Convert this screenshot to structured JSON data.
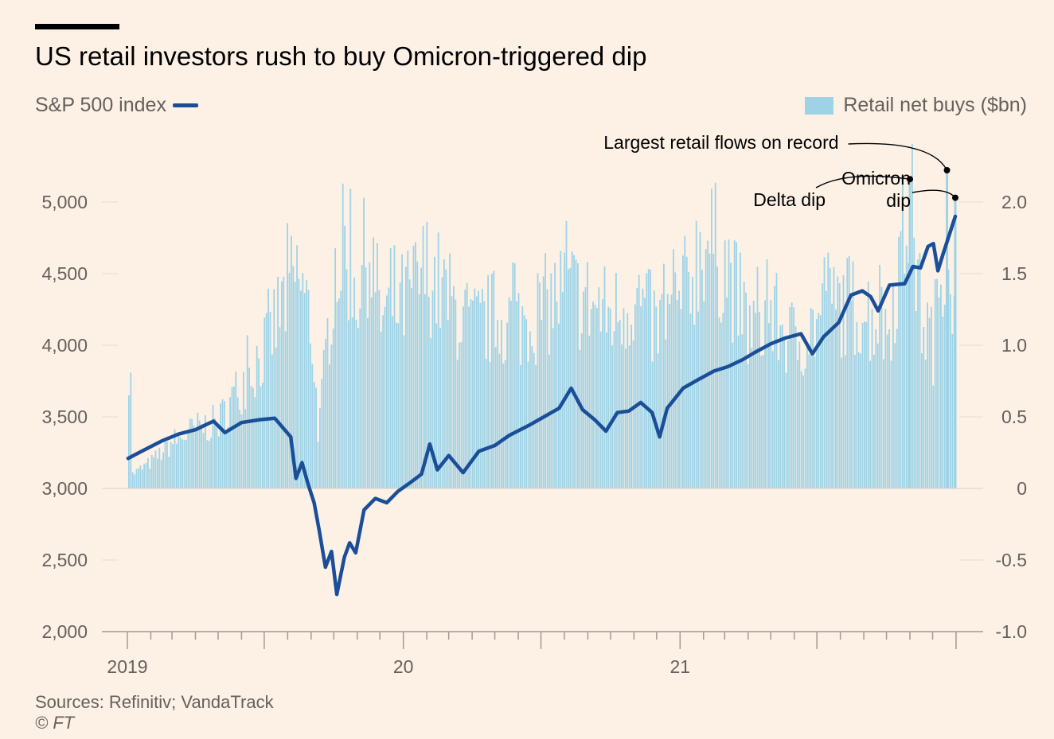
{
  "title": "US retail investors rush to buy Omicron-triggered dip",
  "legend": {
    "left_label": "S&P 500 index",
    "right_label": "Retail net buys ($bn)"
  },
  "source": "Sources: Refinitiv; VandaTrack",
  "copyright": "© FT",
  "colors": {
    "background": "#fdf1e6",
    "line": "#1a4e99",
    "bars": "#9ed3e6",
    "axis": "#a09a95"
  },
  "chart_data": {
    "type": "bar",
    "x_ticks": [
      {
        "label": "2019",
        "date": "2019-01-01"
      },
      {
        "label": "20",
        "date": "2020-01-01"
      },
      {
        "label": "21",
        "date": "2021-01-01"
      }
    ],
    "x_range": [
      "2019-01-01",
      "2021-12-31"
    ],
    "y_left": {
      "label": "S&P 500 index",
      "range": [
        2000,
        5000
      ],
      "ticks": [
        {
          "label": "5,000",
          "value": 5000
        },
        {
          "label": "4,500",
          "value": 4500
        },
        {
          "label": "4,000",
          "value": 4000
        },
        {
          "label": "3,500",
          "value": 3500
        },
        {
          "label": "3,000",
          "value": 3000
        },
        {
          "label": "2,500",
          "value": 2500
        },
        {
          "label": "2,000",
          "value": 2000
        }
      ]
    },
    "y_right": {
      "label": "Retail net buys ($bn)",
      "range": [
        -1.0,
        2.0
      ],
      "ticks": [
        {
          "label": "2.0",
          "value": 2.0
        },
        {
          "label": "1.5",
          "value": 1.5
        },
        {
          "label": "1.0",
          "value": 1.0
        },
        {
          "label": "0.5",
          "value": 0.5
        },
        {
          "label": "0",
          "value": 0
        },
        {
          "label": "-0.5",
          "value": -0.5
        },
        {
          "label": "-1.0",
          "value": -1.0
        }
      ]
    },
    "series": [
      {
        "name": "S&P 500 index",
        "type": "line",
        "axis": "left",
        "points": [
          [
            "2019-01-02",
            3210
          ],
          [
            "2019-01-20",
            3260
          ],
          [
            "2019-02-15",
            3330
          ],
          [
            "2019-03-10",
            3380
          ],
          [
            "2019-04-01",
            3410
          ],
          [
            "2019-04-25",
            3470
          ],
          [
            "2019-05-10",
            3390
          ],
          [
            "2019-06-01",
            3460
          ],
          [
            "2019-06-25",
            3480
          ],
          [
            "2019-07-15",
            3490
          ],
          [
            "2019-08-05",
            3360
          ],
          [
            "2019-08-12",
            3070
          ],
          [
            "2019-08-20",
            3180
          ],
          [
            "2019-08-28",
            3030
          ],
          [
            "2019-09-05",
            2900
          ],
          [
            "2019-09-12",
            2700
          ],
          [
            "2019-09-20",
            2450
          ],
          [
            "2019-09-28",
            2560
          ],
          [
            "2019-10-05",
            2260
          ],
          [
            "2019-10-15",
            2520
          ],
          [
            "2019-10-22",
            2620
          ],
          [
            "2019-10-30",
            2550
          ],
          [
            "2019-11-10",
            2850
          ],
          [
            "2019-11-25",
            2930
          ],
          [
            "2019-12-10",
            2900
          ],
          [
            "2019-12-25",
            2980
          ],
          [
            "2020-01-10",
            3040
          ],
          [
            "2020-01-25",
            3100
          ],
          [
            "2020-02-05",
            3310
          ],
          [
            "2020-02-15",
            3130
          ],
          [
            "2020-03-01",
            3230
          ],
          [
            "2020-03-20",
            3110
          ],
          [
            "2020-04-10",
            3260
          ],
          [
            "2020-05-01",
            3300
          ],
          [
            "2020-05-20",
            3370
          ],
          [
            "2020-06-15",
            3440
          ],
          [
            "2020-07-05",
            3500
          ],
          [
            "2020-07-25",
            3560
          ],
          [
            "2020-08-10",
            3700
          ],
          [
            "2020-08-25",
            3550
          ],
          [
            "2020-09-10",
            3480
          ],
          [
            "2020-09-25",
            3400
          ],
          [
            "2020-10-10",
            3530
          ],
          [
            "2020-10-25",
            3540
          ],
          [
            "2020-11-10",
            3600
          ],
          [
            "2020-11-25",
            3530
          ],
          [
            "2020-12-05",
            3360
          ],
          [
            "2020-12-15",
            3560
          ],
          [
            "2021-01-05",
            3700
          ],
          [
            "2021-01-25",
            3760
          ],
          [
            "2021-02-15",
            3820
          ],
          [
            "2021-03-05",
            3850
          ],
          [
            "2021-03-25",
            3900
          ],
          [
            "2021-04-10",
            3950
          ],
          [
            "2021-05-01",
            4010
          ],
          [
            "2021-05-20",
            4050
          ],
          [
            "2021-06-10",
            4080
          ],
          [
            "2021-06-25",
            3940
          ],
          [
            "2021-07-10",
            4060
          ],
          [
            "2021-07-30",
            4160
          ],
          [
            "2021-08-15",
            4350
          ],
          [
            "2021-08-30",
            4380
          ],
          [
            "2021-09-10",
            4340
          ],
          [
            "2021-09-20",
            4240
          ],
          [
            "2021-10-05",
            4420
          ],
          [
            "2021-10-25",
            4430
          ],
          [
            "2021-11-05",
            4550
          ],
          [
            "2021-11-15",
            4540
          ],
          [
            "2021-11-25",
            4690
          ],
          [
            "2021-12-02",
            4710
          ],
          [
            "2021-12-08",
            4520
          ],
          [
            "2021-12-15",
            4640
          ],
          [
            "2021-12-31",
            4900
          ]
        ]
      },
      {
        "name": "Retail net buys ($bn)",
        "type": "bar",
        "axis": "right",
        "points": [
          [
            "2019-01-05",
            0.1
          ],
          [
            "2019-02-01",
            0.2
          ],
          [
            "2019-03-01",
            0.35
          ],
          [
            "2019-04-01",
            0.45
          ],
          [
            "2019-05-01",
            0.5
          ],
          [
            "2019-06-01",
            0.8
          ],
          [
            "2019-07-01",
            1.05
          ],
          [
            "2019-08-01",
            1.5
          ],
          [
            "2019-08-15",
            1.6
          ],
          [
            "2019-09-01",
            1.2
          ],
          [
            "2019-09-10",
            0.4
          ],
          [
            "2019-10-01",
            1.7
          ],
          [
            "2019-10-15",
            1.8
          ],
          [
            "2019-11-01",
            1.5
          ],
          [
            "2019-11-15",
            1.85
          ],
          [
            "2019-12-01",
            1.3
          ],
          [
            "2020-01-01",
            1.4
          ],
          [
            "2020-02-01",
            1.65
          ],
          [
            "2020-03-01",
            1.4
          ],
          [
            "2020-04-01",
            1.2
          ],
          [
            "2020-05-01",
            1.3
          ],
          [
            "2020-06-01",
            1.25
          ],
          [
            "2020-07-01",
            1.35
          ],
          [
            "2020-08-01",
            1.5
          ],
          [
            "2020-09-01",
            1.4
          ],
          [
            "2020-10-01",
            1.3
          ],
          [
            "2020-11-01",
            1.45
          ],
          [
            "2020-12-01",
            1.2
          ],
          [
            "2021-01-01",
            1.4
          ],
          [
            "2021-02-01",
            1.9
          ],
          [
            "2021-03-01",
            1.7
          ],
          [
            "2021-04-01",
            1.2
          ],
          [
            "2021-05-01",
            1.3
          ],
          [
            "2021-06-01",
            1.1
          ],
          [
            "2021-07-01",
            1.25
          ],
          [
            "2021-08-01",
            1.4
          ],
          [
            "2021-09-01",
            1.35
          ],
          [
            "2021-10-01",
            1.2
          ],
          [
            "2021-11-01",
            2.16
          ],
          [
            "2021-11-15",
            1.3
          ],
          [
            "2021-12-01",
            1.1
          ],
          [
            "2021-12-20",
            2.2
          ],
          [
            "2021-12-31",
            1.0
          ]
        ]
      }
    ],
    "annotations": [
      {
        "text": "Largest retail flows on record",
        "date": "2021-12-20",
        "value": 2.2
      },
      {
        "text": "Delta dip",
        "date": "2021-11-01",
        "value": 2.16
      },
      {
        "text": "Omicron",
        "text2": "dip",
        "date": "2021-12-31",
        "value": 2.03
      }
    ],
    "grid": false
  }
}
